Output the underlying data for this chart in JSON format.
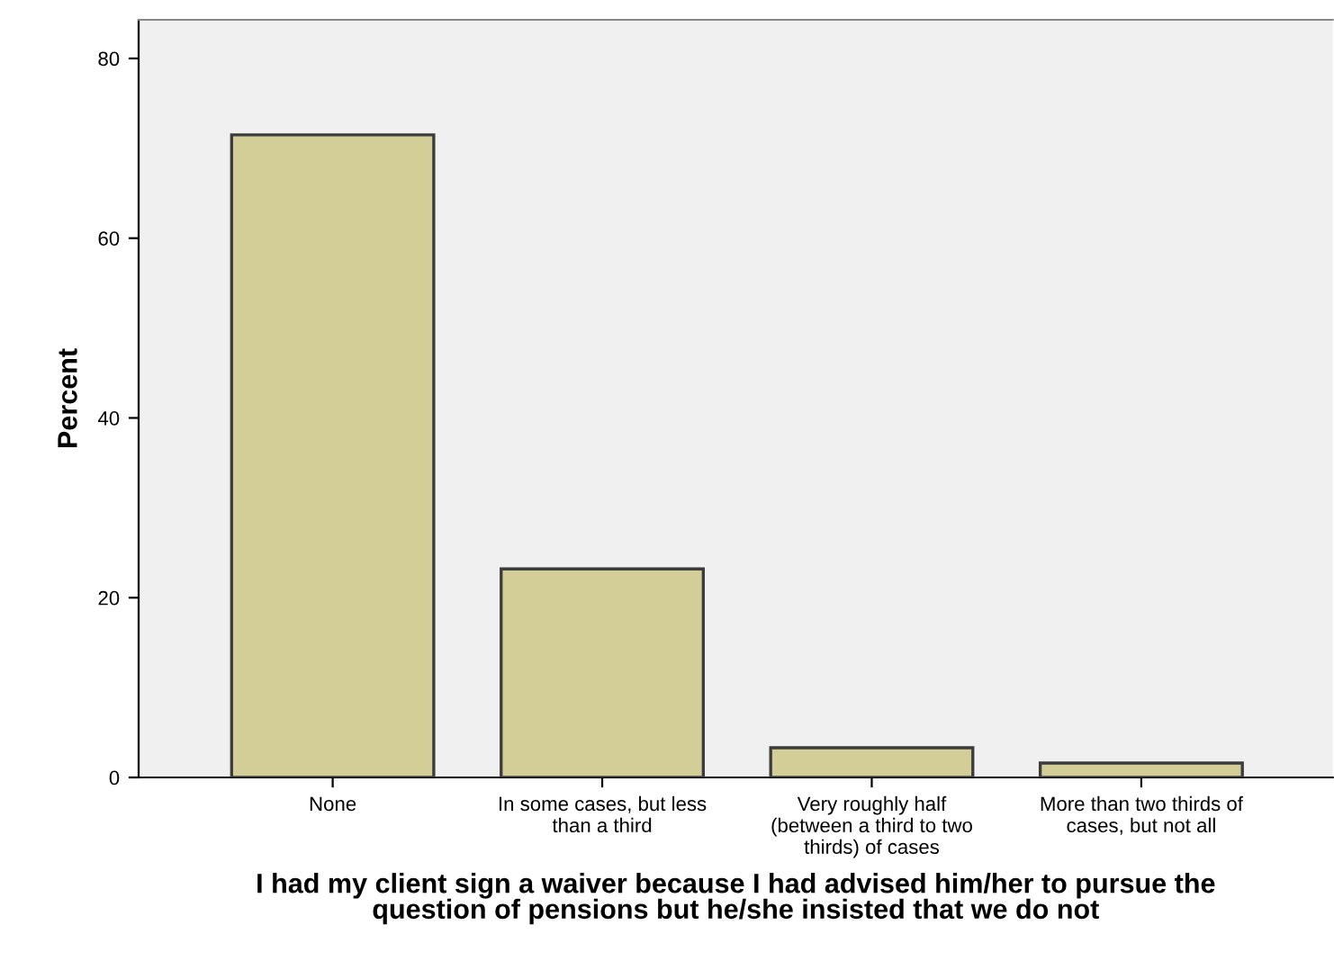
{
  "chart_data": {
    "type": "bar",
    "xlabel": "I had my client sign a waiver because I had advised him/her to pursue the\nquestion of pensions but he/she insisted that we do not",
    "ylabel": "Percent",
    "categories": [
      "None",
      "In some cases, but less\nthan a third",
      "Very roughly half\n(between a third to two\nthirds) of cases",
      "More than two thirds of\ncases, but not all"
    ],
    "values": [
      71.5,
      23.2,
      3.3,
      1.6
    ],
    "color": "#d3ce97",
    "ylim": [
      0,
      84.3
    ],
    "yticks": [
      0,
      20,
      40,
      60,
      80
    ],
    "grid": false,
    "legend": false
  }
}
